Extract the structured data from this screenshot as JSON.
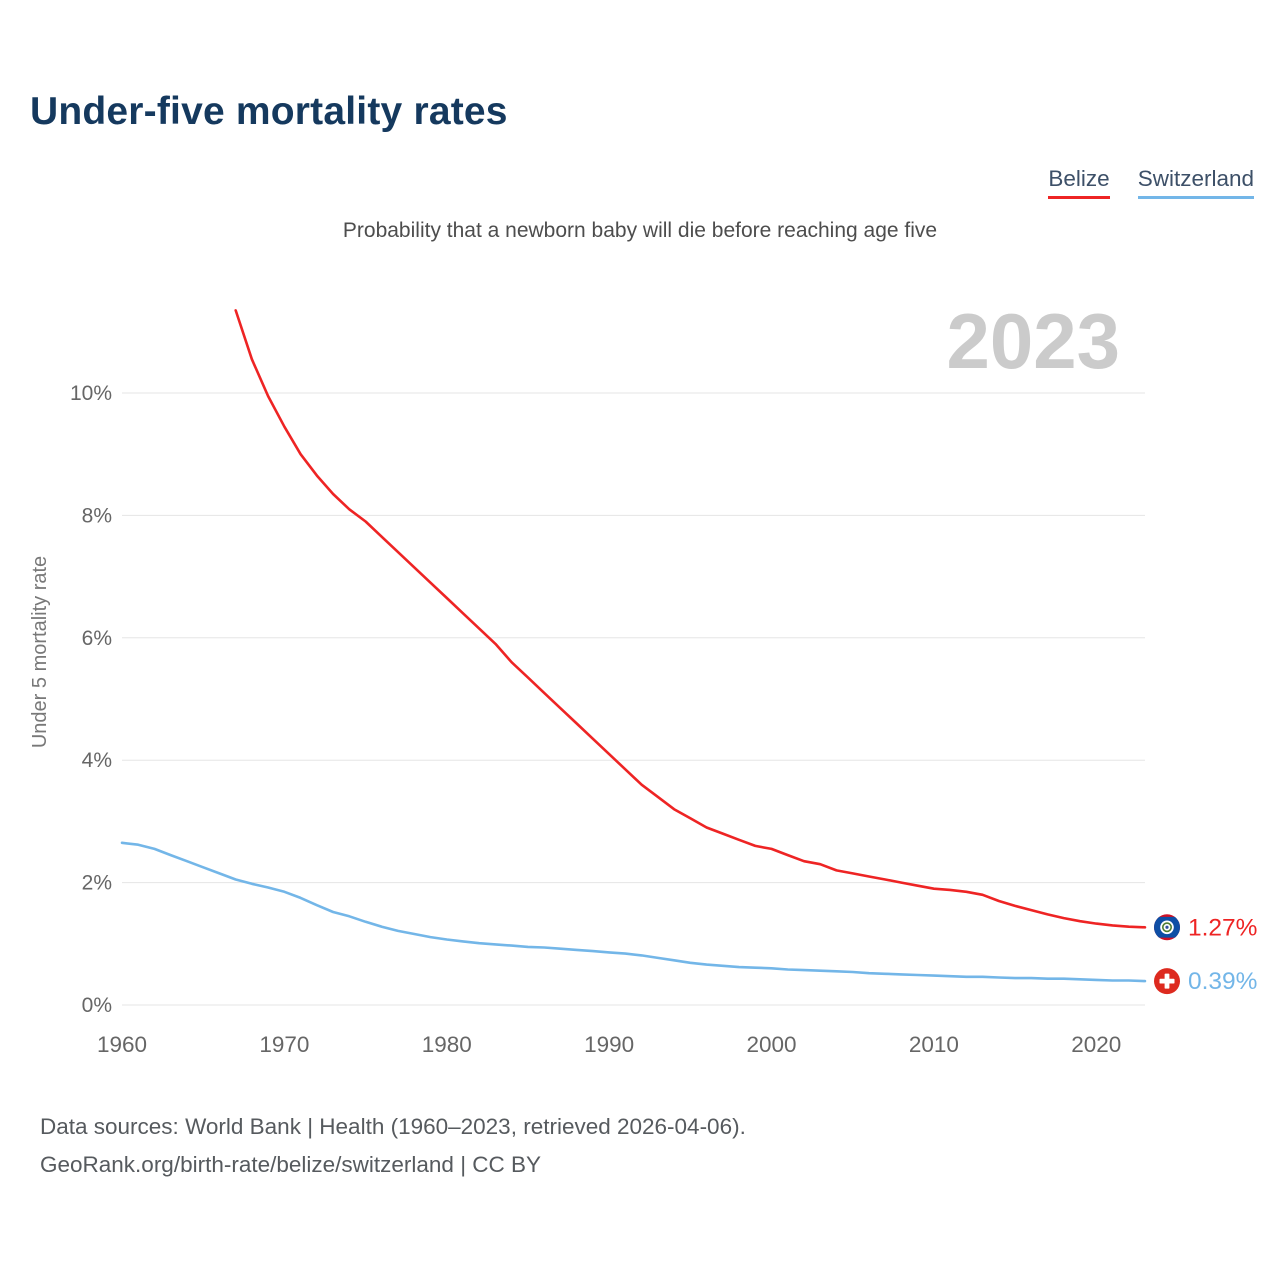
{
  "page": {
    "title": "Under-five mortality rates",
    "subtitle": "Probability that a newborn baby will die before reaching age five",
    "year_watermark": "2023",
    "footer_line1": "Data sources: World Bank | Health (1960–2023, retrieved 2026-04-06).",
    "footer_line2": "GeoRank.org/birth-rate/belize/switzerland | CC BY"
  },
  "legend": {
    "items": [
      {
        "label": "Belize",
        "color": "#ee2424"
      },
      {
        "label": "Switzerland",
        "color": "#73b6e8"
      }
    ]
  },
  "colors": {
    "title": "#15395e",
    "subtitle": "#4d4d4d",
    "watermark": "#cbcbcb",
    "grid": "#e5e5e5",
    "tick": "#666666",
    "axis_label": "#787878",
    "footer": "#565a5e",
    "belize_flag": {
      "rim": "#ce1126",
      "field": "#0e4ea5",
      "disc": "#ffffff",
      "wreath": "#4e7c31",
      "center": "#33539c"
    },
    "switzerland_flag": {
      "bg": "#dd2a1f",
      "cross": "#ffffff"
    }
  },
  "chart_data": {
    "type": "line",
    "title": "Under-five mortality rates",
    "subtitle": "Probability that a newborn baby will die before reaching age five",
    "xlabel": "",
    "ylabel": "Under 5 mortality rate",
    "xlim": [
      1960,
      2023
    ],
    "ylim": [
      0,
      10
    ],
    "yticks": [
      0,
      2,
      4,
      6,
      8,
      10
    ],
    "ytick_labels": [
      "0%",
      "2%",
      "4%",
      "6%",
      "8%",
      "10%"
    ],
    "xticks": [
      1960,
      1970,
      1980,
      1990,
      2000,
      2010,
      2020
    ],
    "grid": "horizontal",
    "legend_position": "top-right",
    "unit": "%",
    "series": [
      {
        "name": "Belize",
        "color": "#ee2424",
        "flag": "belize",
        "end_label": "1.27%",
        "x": [
          1967,
          1968,
          1969,
          1970,
          1971,
          1972,
          1973,
          1974,
          1975,
          1976,
          1977,
          1978,
          1979,
          1980,
          1981,
          1982,
          1983,
          1984,
          1985,
          1986,
          1987,
          1988,
          1989,
          1990,
          1991,
          1992,
          1993,
          1994,
          1995,
          1996,
          1997,
          1998,
          1999,
          2000,
          2001,
          2002,
          2003,
          2004,
          2005,
          2006,
          2007,
          2008,
          2009,
          2010,
          2011,
          2012,
          2013,
          2014,
          2015,
          2016,
          2017,
          2018,
          2019,
          2020,
          2021,
          2022,
          2023
        ],
        "values": [
          11.35,
          10.55,
          9.95,
          9.45,
          9.0,
          8.65,
          8.35,
          8.1,
          7.9,
          7.65,
          7.4,
          7.15,
          6.9,
          6.65,
          6.4,
          6.15,
          5.9,
          5.6,
          5.35,
          5.1,
          4.85,
          4.6,
          4.35,
          4.1,
          3.85,
          3.6,
          3.4,
          3.2,
          3.05,
          2.9,
          2.8,
          2.7,
          2.6,
          2.55,
          2.45,
          2.35,
          2.3,
          2.2,
          2.15,
          2.1,
          2.05,
          2.0,
          1.95,
          1.9,
          1.88,
          1.85,
          1.8,
          1.7,
          1.62,
          1.55,
          1.48,
          1.42,
          1.37,
          1.33,
          1.3,
          1.28,
          1.27
        ]
      },
      {
        "name": "Switzerland",
        "color": "#73b6e8",
        "flag": "switzerland",
        "end_label": "0.39%",
        "x": [
          1960,
          1961,
          1962,
          1963,
          1964,
          1965,
          1966,
          1967,
          1968,
          1969,
          1970,
          1971,
          1972,
          1973,
          1974,
          1975,
          1976,
          1977,
          1978,
          1979,
          1980,
          1981,
          1982,
          1983,
          1984,
          1985,
          1986,
          1987,
          1988,
          1989,
          1990,
          1991,
          1992,
          1993,
          1994,
          1995,
          1996,
          1997,
          1998,
          1999,
          2000,
          2001,
          2002,
          2003,
          2004,
          2005,
          2006,
          2007,
          2008,
          2009,
          2010,
          2011,
          2012,
          2013,
          2014,
          2015,
          2016,
          2017,
          2018,
          2019,
          2020,
          2021,
          2022,
          2023
        ],
        "values": [
          2.65,
          2.62,
          2.55,
          2.45,
          2.35,
          2.25,
          2.15,
          2.05,
          1.98,
          1.92,
          1.85,
          1.75,
          1.63,
          1.52,
          1.45,
          1.36,
          1.28,
          1.21,
          1.16,
          1.11,
          1.07,
          1.04,
          1.01,
          0.99,
          0.97,
          0.95,
          0.94,
          0.92,
          0.9,
          0.88,
          0.86,
          0.84,
          0.81,
          0.77,
          0.73,
          0.69,
          0.66,
          0.64,
          0.62,
          0.61,
          0.6,
          0.58,
          0.57,
          0.56,
          0.55,
          0.54,
          0.52,
          0.51,
          0.5,
          0.49,
          0.48,
          0.47,
          0.46,
          0.46,
          0.45,
          0.44,
          0.44,
          0.43,
          0.43,
          0.42,
          0.41,
          0.4,
          0.4,
          0.39
        ]
      }
    ]
  }
}
